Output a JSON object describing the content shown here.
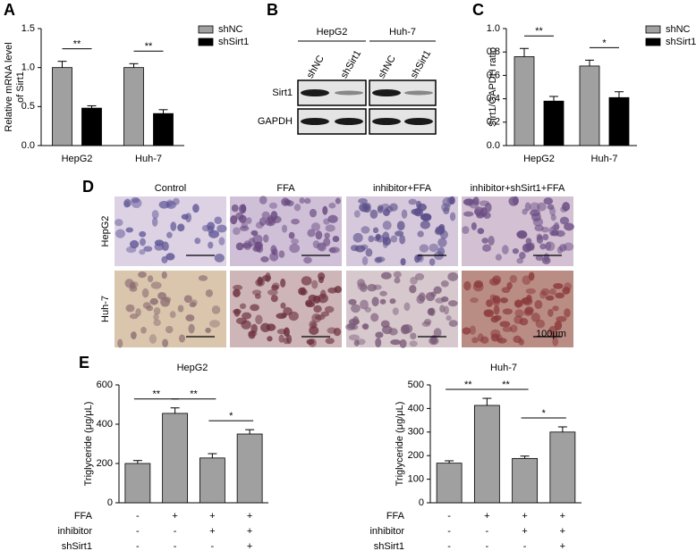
{
  "chart_data": [
    {
      "type": "bar",
      "panel": "A",
      "y_label": [
        "Relative mRNA level",
        "of Sirt1"
      ],
      "categories": [
        "HepG2",
        "Huh-7"
      ],
      "series": [
        {
          "name": "shNC",
          "color": "#a0a0a0",
          "values": [
            1.0,
            1.0
          ],
          "errors": [
            0.08,
            0.05
          ]
        },
        {
          "name": "shSirt1",
          "color": "#000000",
          "values": [
            0.48,
            0.41
          ],
          "errors": [
            0.03,
            0.05
          ]
        }
      ],
      "significance": [
        "**",
        "**"
      ],
      "ylim": [
        0,
        1.5
      ],
      "yticks": [
        {
          "value": 0,
          "label": "0.0"
        },
        0.5,
        {
          "value": 1,
          "label": "1.0"
        },
        1.5
      ]
    },
    {
      "type": "bar",
      "panel": "C",
      "y_label": "Sirt1/GAPDH ratio",
      "categories": [
        "HepG2",
        "Huh-7"
      ],
      "series": [
        {
          "name": "shNC",
          "color": "#a0a0a0",
          "values": [
            0.76,
            0.68
          ],
          "errors": [
            0.07,
            0.05
          ]
        },
        {
          "name": "shSirt1",
          "color": "#000000",
          "values": [
            0.38,
            0.41
          ],
          "errors": [
            0.04,
            0.05
          ]
        }
      ],
      "significance": [
        "**",
        "*"
      ],
      "ylim": [
        0,
        1.0
      ],
      "yticks": [
        {
          "value": 0,
          "label": "0.0"
        },
        0.2,
        0.4,
        0.6,
        0.8,
        {
          "value": 1,
          "label": "1.0"
        }
      ]
    },
    {
      "type": "bar",
      "panel": "E",
      "title": "HepG2",
      "y_label": "Triglyceride (μg/μL)",
      "values": [
        200,
        455,
        228,
        350
      ],
      "errors": [
        15,
        28,
        22,
        22
      ],
      "color": "#a0a0a0",
      "comparisons": [
        "**",
        "**",
        "*"
      ],
      "conditions": [
        {
          "name": "FFA",
          "values": [
            "-",
            "+",
            "+",
            "+"
          ]
        },
        {
          "name": "inhibitor",
          "values": [
            "-",
            "-",
            "+",
            "+"
          ]
        },
        {
          "name": "shSirt1",
          "values": [
            "-",
            "-",
            "-",
            "+"
          ]
        }
      ],
      "ylim": [
        0,
        600
      ],
      "yticks": [
        0,
        200,
        400,
        600
      ]
    },
    {
      "type": "bar",
      "title": "Huh-7",
      "y_label": "Triglyceride (μg/μL)",
      "values": [
        168,
        413,
        188,
        300
      ],
      "errors": [
        10,
        30,
        10,
        22
      ],
      "color": "#a0a0a0",
      "comparisons": [
        "**",
        "**",
        "*"
      ],
      "conditions": [
        {
          "name": "FFA",
          "values": [
            "-",
            "+",
            "+",
            "+"
          ]
        },
        {
          "name": "inhibitor",
          "values": [
            "-",
            "-",
            "+",
            "+"
          ]
        },
        {
          "name": "shSirt1",
          "values": [
            "-",
            "-",
            "-",
            "+"
          ]
        }
      ],
      "ylim": [
        0,
        500
      ],
      "yticks": [
        0,
        100,
        200,
        300,
        400,
        500
      ]
    }
  ],
  "blot": {
    "panel": "B",
    "cell_lines": [
      "HepG2",
      "Huh-7"
    ],
    "lanes": [
      "shNC",
      "shSirt1",
      "shNC",
      "shSirt1"
    ],
    "proteins": [
      "Sirt1",
      "GAPDH"
    ]
  },
  "micrographs": {
    "panel": "D",
    "columns": [
      "Control",
      "FFA",
      "inhibitor+FFA",
      "inhibitor+shSirt1+FFA"
    ],
    "rows": [
      "HepG2",
      "Huh-7"
    ],
    "scale_bar": "100μm"
  }
}
